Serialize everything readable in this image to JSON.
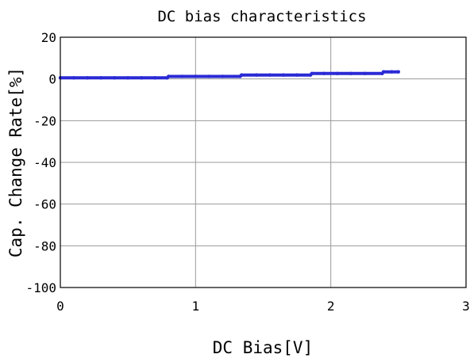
{
  "chart_data": {
    "type": "line",
    "title": "DC bias characteristics",
    "xlabel": "DC Bias[V]",
    "ylabel": "Cap. Change Rate[%]",
    "xlim": [
      0,
      3
    ],
    "ylim": [
      -100,
      20
    ],
    "x_ticks": [
      0,
      1,
      2,
      3
    ],
    "y_ticks": [
      20,
      0,
      -20,
      -40,
      -60,
      -80,
      -100
    ],
    "x_tick_labels": [
      "0",
      "1",
      "2",
      "3"
    ],
    "y_tick_labels": [
      "20",
      "0",
      "-20",
      "-40",
      "-60",
      "-80",
      "-100"
    ],
    "grid": true,
    "legend": "none",
    "series": [
      {
        "color": "#2a2ad6",
        "x": [
          0.0,
          0.1,
          0.2,
          0.3,
          0.4,
          0.5,
          0.6,
          0.7,
          0.79,
          0.8,
          0.9,
          1.0,
          1.1,
          1.2,
          1.33,
          1.34,
          1.45,
          1.55,
          1.65,
          1.75,
          1.85,
          1.86,
          1.95,
          2.05,
          2.15,
          2.25,
          2.38,
          2.39,
          2.45,
          2.5
        ],
        "y": [
          0.5,
          0.5,
          0.5,
          0.5,
          0.5,
          0.5,
          0.5,
          0.5,
          0.5,
          1.2,
          1.2,
          1.2,
          1.2,
          1.2,
          1.2,
          1.9,
          1.9,
          1.9,
          1.9,
          1.9,
          1.9,
          2.6,
          2.6,
          2.6,
          2.6,
          2.6,
          2.6,
          3.4,
          3.4,
          3.4
        ]
      }
    ]
  }
}
